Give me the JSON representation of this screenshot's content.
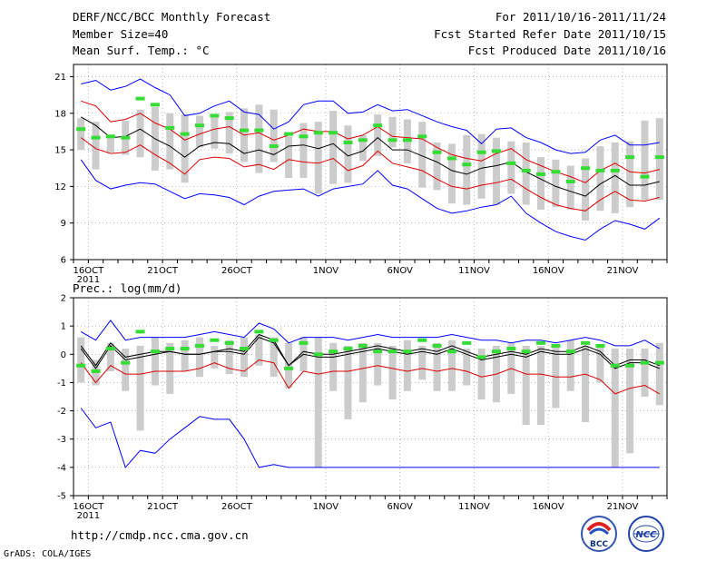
{
  "header": {
    "title": "DERF/NCC/BCC Monthly Forecast",
    "member_size": "Member Size=40",
    "variable": "Mean Surf. Temp.: °C",
    "period": "For 2011/10/16-2011/11/24",
    "started": "Fcst Started Refer Date 2011/10/15",
    "produced": "Fcst Produced Date 2011/10/16"
  },
  "footer": {
    "url": "http://cmdp.ncc.cma.gov.cn",
    "credit": "GrADS: COLA/IGES",
    "logo_left_text": "BCC",
    "logo_right_text": "NCC"
  },
  "colors": {
    "envelope": "#0000ff",
    "spread": "#dd0000",
    "mean": "#000000",
    "obs": "#33dd33",
    "box": "#cccccc"
  },
  "chart_data": [
    {
      "type": "line",
      "title": "Mean Surf. Temp.: °C",
      "ylim": [
        6,
        22
      ],
      "yticks": [
        6,
        9,
        12,
        15,
        18,
        21
      ],
      "xlim": [
        0,
        40
      ],
      "x": [
        0,
        1,
        2,
        3,
        4,
        5,
        6,
        7,
        8,
        9,
        10,
        11,
        12,
        13,
        14,
        15,
        16,
        17,
        18,
        19,
        20,
        21,
        22,
        23,
        24,
        25,
        26,
        27,
        28,
        29,
        30,
        31,
        32,
        33,
        34,
        35,
        36,
        37,
        38,
        39
      ],
      "xticks": [
        {
          "day": 1,
          "label": "16OCT",
          "sub": "2011"
        },
        {
          "day": 6,
          "label": "21OCT"
        },
        {
          "day": 11,
          "label": "26OCT"
        },
        {
          "day": 17,
          "label": "1NOV"
        },
        {
          "day": 22,
          "label": "6NOV"
        },
        {
          "day": 27,
          "label": "11NOV"
        },
        {
          "day": 32,
          "label": "16NOV"
        },
        {
          "day": 37,
          "label": "21NOV"
        }
      ],
      "series": [
        {
          "name": "max",
          "color": "#0000ff",
          "values": [
            20.4,
            20.7,
            19.9,
            20.2,
            20.8,
            20.1,
            19.5,
            17.8,
            18.0,
            18.6,
            19.0,
            18.1,
            17.9,
            16.7,
            17.3,
            18.7,
            19.0,
            19.0,
            18.0,
            18.1,
            18.7,
            18.2,
            18.3,
            17.8,
            17.3,
            16.9,
            16.6,
            15.5,
            16.7,
            16.8,
            16.0,
            15.6,
            15.0,
            14.7,
            14.8,
            15.8,
            16.2,
            15.4,
            15.4,
            15.6
          ]
        },
        {
          "name": "upper",
          "color": "#dd0000",
          "values": [
            19.0,
            18.6,
            17.3,
            17.5,
            18.0,
            17.2,
            16.7,
            15.8,
            16.3,
            16.7,
            16.9,
            16.2,
            16.4,
            15.8,
            16.2,
            16.7,
            16.5,
            16.5,
            15.9,
            16.2,
            16.9,
            16.1,
            16.0,
            15.9,
            15.2,
            14.6,
            14.3,
            14.1,
            14.7,
            15.1,
            14.2,
            13.7,
            13.2,
            12.8,
            12.3,
            13.3,
            13.9,
            13.2,
            13.1,
            13.4
          ]
        },
        {
          "name": "mean",
          "color": "#000000",
          "values": [
            17.7,
            17.0,
            16.0,
            16.1,
            16.7,
            15.9,
            15.3,
            14.4,
            15.3,
            15.6,
            15.5,
            14.7,
            15.0,
            14.6,
            15.3,
            15.4,
            15.1,
            15.5,
            14.5,
            14.9,
            16.0,
            15.0,
            15.0,
            14.5,
            14.0,
            13.3,
            13.0,
            13.5,
            13.7,
            14.0,
            13.2,
            12.6,
            12.0,
            11.6,
            11.2,
            12.2,
            12.9,
            12.1,
            12.1,
            12.4
          ]
        },
        {
          "name": "lower",
          "color": "#dd0000",
          "values": [
            16.0,
            15.1,
            14.7,
            14.8,
            15.4,
            14.6,
            13.9,
            13.0,
            14.2,
            14.4,
            14.3,
            13.6,
            13.8,
            13.4,
            14.2,
            14.0,
            13.9,
            14.3,
            13.3,
            13.7,
            14.9,
            13.9,
            13.6,
            13.3,
            12.6,
            12.0,
            11.8,
            12.1,
            12.3,
            12.6,
            11.8,
            11.1,
            10.5,
            10.2,
            10.0,
            10.9,
            11.6,
            10.9,
            10.8,
            11.1
          ]
        },
        {
          "name": "min",
          "color": "#0000ff",
          "values": [
            14.2,
            12.5,
            11.8,
            12.1,
            12.3,
            12.2,
            11.6,
            11.0,
            11.4,
            11.3,
            11.1,
            10.5,
            11.2,
            11.6,
            11.7,
            11.8,
            11.2,
            11.8,
            12.0,
            12.2,
            13.3,
            12.1,
            11.8,
            11.0,
            10.2,
            9.8,
            10.0,
            10.3,
            10.5,
            11.2,
            9.8,
            9.0,
            8.3,
            7.9,
            7.6,
            8.5,
            9.2,
            8.9,
            8.5,
            9.4
          ]
        }
      ],
      "boxes": [
        [
          15.0,
          17.6
        ],
        [
          13.4,
          17.3
        ],
        [
          14.8,
          16.2
        ],
        [
          14.6,
          17.4
        ],
        [
          14.4,
          18.3
        ],
        [
          13.3,
          18.5
        ],
        [
          13.4,
          18.0
        ],
        [
          12.3,
          17.9
        ],
        [
          15.2,
          17.8
        ],
        [
          15.1,
          17.8
        ],
        [
          14.7,
          18.1
        ],
        [
          14.0,
          18.4
        ],
        [
          13.1,
          18.7
        ],
        [
          14.0,
          18.3
        ],
        [
          12.7,
          16.1
        ],
        [
          12.7,
          17.2
        ],
        [
          11.4,
          17.3
        ],
        [
          12.2,
          18.2
        ],
        [
          12.3,
          17.0
        ],
        [
          14.1,
          16.2
        ],
        [
          14.5,
          17.9
        ],
        [
          15.2,
          17.7
        ],
        [
          13.9,
          17.5
        ],
        [
          11.9,
          17.3
        ],
        [
          11.7,
          15.6
        ],
        [
          10.6,
          15.5
        ],
        [
          10.5,
          16.2
        ],
        [
          11.0,
          16.3
        ],
        [
          10.5,
          16.0
        ],
        [
          11.4,
          15.7
        ],
        [
          10.5,
          15.6
        ],
        [
          10.1,
          14.4
        ],
        [
          10.3,
          14.2
        ],
        [
          10.1,
          13.7
        ],
        [
          9.2,
          14.3
        ],
        [
          10.0,
          15.3
        ],
        [
          9.8,
          15.6
        ],
        [
          10.3,
          15.7
        ],
        [
          10.9,
          17.4
        ],
        [
          10.9,
          17.6
        ]
      ],
      "obs": [
        16.7,
        16.0,
        16.1,
        16.0,
        19.2,
        18.7,
        16.8,
        16.3,
        17.0,
        17.8,
        17.6,
        16.6,
        16.6,
        15.3,
        16.3,
        16.1,
        16.4,
        16.4,
        15.6,
        15.8,
        17.0,
        15.8,
        15.8,
        16.1,
        14.8,
        14.3,
        13.8,
        14.8,
        14.9,
        13.9,
        13.3,
        13.0,
        13.2,
        12.4,
        13.5,
        13.3,
        13.3,
        14.4,
        12.8,
        14.4
      ]
    },
    {
      "type": "line",
      "title": "Prec.: log(mm/d)",
      "ylim": [
        -5,
        2
      ],
      "yticks": [
        -5,
        -4,
        -3,
        -2,
        -1,
        0,
        1,
        2
      ],
      "xlim": [
        0,
        40
      ],
      "x": [
        0,
        1,
        2,
        3,
        4,
        5,
        6,
        7,
        8,
        9,
        10,
        11,
        12,
        13,
        14,
        15,
        16,
        17,
        18,
        19,
        20,
        21,
        22,
        23,
        24,
        25,
        26,
        27,
        28,
        29,
        30,
        31,
        32,
        33,
        34,
        35,
        36,
        37,
        38,
        39
      ],
      "xticks": [
        {
          "day": 1,
          "label": "16OCT",
          "sub": "2011"
        },
        {
          "day": 6,
          "label": "21OCT"
        },
        {
          "day": 11,
          "label": "26OCT"
        },
        {
          "day": 17,
          "label": "1NOV"
        },
        {
          "day": 22,
          "label": "6NOV"
        },
        {
          "day": 27,
          "label": "11NOV"
        },
        {
          "day": 32,
          "label": "16NOV"
        },
        {
          "day": 37,
          "label": "21NOV"
        }
      ],
      "series": [
        {
          "name": "max",
          "color": "#0000ff",
          "values": [
            0.8,
            0.5,
            1.2,
            0.5,
            0.6,
            0.6,
            0.6,
            0.6,
            0.7,
            0.8,
            0.7,
            0.6,
            1.1,
            0.9,
            0.4,
            0.6,
            0.6,
            0.6,
            0.5,
            0.6,
            0.7,
            0.6,
            0.6,
            0.6,
            0.6,
            0.7,
            0.6,
            0.5,
            0.5,
            0.4,
            0.5,
            0.5,
            0.4,
            0.5,
            0.6,
            0.5,
            0.3,
            0.3,
            0.5,
            0.2
          ]
        },
        {
          "name": "upper",
          "color": "#000000",
          "values": [
            0.3,
            -0.4,
            0.4,
            -0.1,
            0.0,
            0.1,
            0.1,
            0.0,
            0.0,
            0.1,
            0.2,
            0.1,
            0.7,
            0.5,
            -0.4,
            0.1,
            0.0,
            0.0,
            0.1,
            0.2,
            0.3,
            0.2,
            0.1,
            0.2,
            0.1,
            0.3,
            0.1,
            -0.1,
            0.0,
            0.1,
            0.0,
            0.2,
            0.1,
            0.1,
            0.3,
            0.1,
            -0.4,
            -0.2,
            -0.2,
            -0.4
          ]
        },
        {
          "name": "mean",
          "color": "#000000",
          "values": [
            0.2,
            -0.5,
            0.3,
            -0.2,
            -0.1,
            0.0,
            0.1,
            0.0,
            0.0,
            0.1,
            0.1,
            0.0,
            0.6,
            0.4,
            -0.4,
            0.0,
            -0.1,
            -0.1,
            0.0,
            0.1,
            0.2,
            0.1,
            0.0,
            0.1,
            0.0,
            0.2,
            0.0,
            -0.2,
            -0.1,
            0.0,
            -0.1,
            0.1,
            0.0,
            0.0,
            0.2,
            0.0,
            -0.5,
            -0.3,
            -0.3,
            -0.5
          ]
        },
        {
          "name": "lower",
          "color": "#dd0000",
          "values": [
            -0.3,
            -1.0,
            -0.4,
            -0.7,
            -0.7,
            -0.6,
            -0.6,
            -0.6,
            -0.5,
            -0.3,
            -0.5,
            -0.6,
            -0.2,
            -0.3,
            -1.2,
            -0.6,
            -0.7,
            -0.6,
            -0.6,
            -0.5,
            -0.4,
            -0.5,
            -0.6,
            -0.5,
            -0.6,
            -0.5,
            -0.6,
            -0.8,
            -0.7,
            -0.5,
            -0.7,
            -0.7,
            -0.8,
            -0.8,
            -0.7,
            -0.9,
            -1.4,
            -1.2,
            -1.1,
            -1.4
          ]
        },
        {
          "name": "min",
          "color": "#0000ff",
          "values": [
            -1.9,
            -2.6,
            -2.4,
            -4.0,
            -3.4,
            -3.5,
            -3.0,
            -2.6,
            -2.2,
            -2.3,
            -2.3,
            -3.0,
            -4.0,
            -3.9,
            -4.0,
            -4.0,
            -4.0,
            -4.0,
            -4.0,
            -4.0,
            -4.0,
            -4.0,
            -4.0,
            -4.0,
            -4.0,
            -4.0,
            -4.0,
            -4.0,
            -4.0,
            -4.0,
            -4.0,
            -4.0,
            -4.0,
            -4.0,
            -4.0,
            -4.0,
            -4.0,
            -4.0,
            -4.0,
            -4.0
          ]
        }
      ],
      "boxes": [
        [
          -1.0,
          0.6
        ],
        [
          -1.1,
          -0.2
        ],
        [
          -0.6,
          0.4
        ],
        [
          -1.3,
          0.2
        ],
        [
          -2.7,
          0.3
        ],
        [
          -1.1,
          0.6
        ],
        [
          -1.4,
          0.4
        ],
        [
          -0.6,
          0.5
        ],
        [
          -0.8,
          0.6
        ],
        [
          -0.5,
          0.3
        ],
        [
          -0.7,
          0.5
        ],
        [
          -0.8,
          0.6
        ],
        [
          -0.4,
          0.7
        ],
        [
          -0.8,
          0.6
        ],
        [
          -1.2,
          0.4
        ],
        [
          -0.6,
          0.6
        ],
        [
          -4.0,
          0.6
        ],
        [
          -1.3,
          0.4
        ],
        [
          -2.3,
          0.3
        ],
        [
          -1.7,
          0.4
        ],
        [
          -1.1,
          0.4
        ],
        [
          -1.6,
          0.3
        ],
        [
          -1.3,
          0.5
        ],
        [
          -0.9,
          0.3
        ],
        [
          -1.3,
          0.4
        ],
        [
          -1.3,
          0.5
        ],
        [
          -1.1,
          0.2
        ],
        [
          -1.6,
          0.2
        ],
        [
          -1.7,
          0.3
        ],
        [
          -1.4,
          0.4
        ],
        [
          -2.5,
          0.3
        ],
        [
          -2.5,
          0.3
        ],
        [
          -1.9,
          0.3
        ],
        [
          -1.3,
          0.5
        ],
        [
          -2.4,
          0.3
        ],
        [
          -1.0,
          0.3
        ],
        [
          -4.0,
          0.2
        ],
        [
          -3.5,
          0.2
        ],
        [
          -1.5,
          0.2
        ],
        [
          -1.8,
          0.4
        ]
      ],
      "obs": [
        -0.4,
        -0.6,
        0.2,
        -0.3,
        0.8,
        0.1,
        0.2,
        0.2,
        0.3,
        0.5,
        0.4,
        0.2,
        0.8,
        0.5,
        -0.5,
        0.4,
        0.0,
        0.1,
        0.2,
        0.3,
        0.1,
        0.1,
        0.1,
        0.5,
        0.3,
        0.1,
        0.4,
        -0.1,
        0.1,
        0.2,
        0.1,
        0.4,
        0.3,
        0.1,
        0.4,
        0.3,
        -0.4,
        -0.4,
        -0.3,
        -0.3
      ]
    }
  ]
}
